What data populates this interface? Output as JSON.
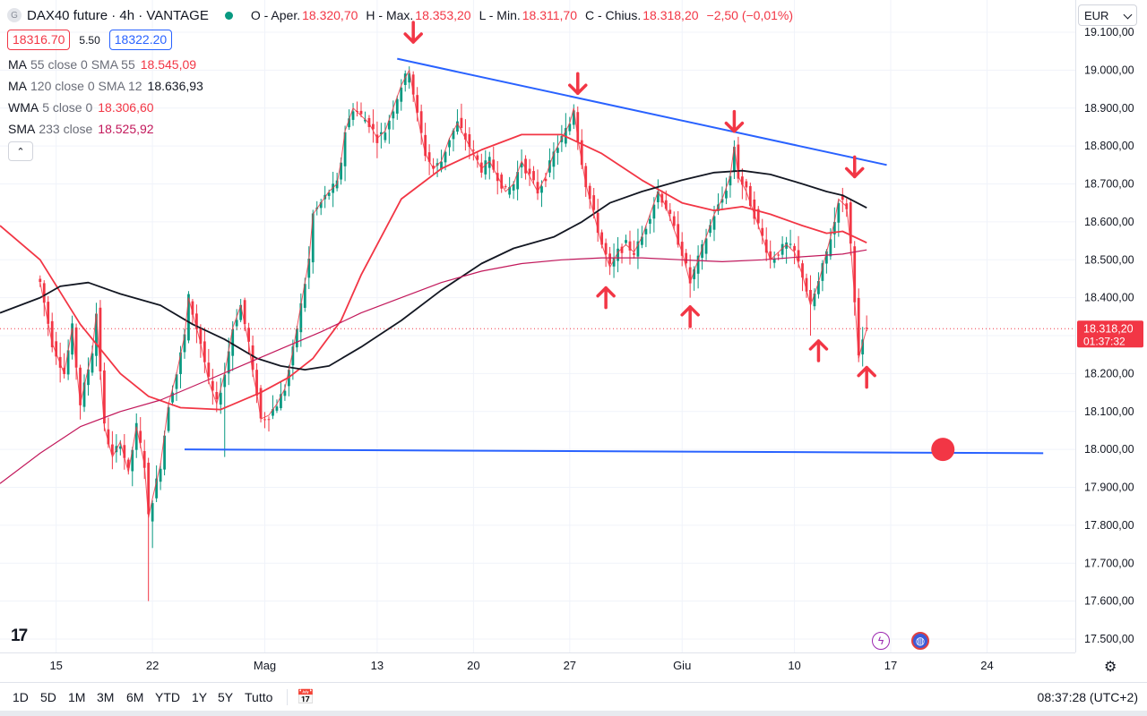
{
  "header": {
    "logo_letter": "G",
    "symbol": "DAX40 future · 4h · VANTAGE",
    "open_label": "O - Aper.",
    "open_value": "18.320,70",
    "high_label": "H - Max.",
    "high_value": "18.353,20",
    "low_label": "L - Min.",
    "low_value": "18.311,70",
    "close_label": "C - Chius.",
    "close_value": "18.318,20",
    "change": "−2,50 (−0,01%)",
    "bid": "18316.70",
    "spread": "5.50",
    "ask": "18322.20",
    "currency": "EUR",
    "collapse_glyph": "⌃"
  },
  "indicators": [
    {
      "name": "MA",
      "params": "55 close 0 SMA 55",
      "value": "18.545,09",
      "color": "#f23645"
    },
    {
      "name": "MA",
      "params": "120 close 0 SMA 12",
      "value": "18.636,93",
      "color": "#131722"
    },
    {
      "name": "WMA",
      "params": "5 close 0",
      "value": "18.306,60",
      "color": "#f23645"
    },
    {
      "name": "SMA",
      "params": "233 close",
      "value": "18.525,92",
      "color": "#c2185b"
    }
  ],
  "price_axis": {
    "labels": [
      "19.100,00",
      "19.000,00",
      "18.900,00",
      "18.800,00",
      "18.700,00",
      "18.600,00",
      "18.500,00",
      "18.400,00",
      "18.300,00",
      "18.200,00",
      "18.100,00",
      "18.000,00",
      "17.900,00",
      "17.800,00",
      "17.700,00",
      "17.600,00",
      "17.500,00"
    ],
    "current_price": "18.318,20",
    "countdown": "01:37:32"
  },
  "time_axis": {
    "labels": [
      "15",
      "22",
      "Mag",
      "13",
      "20",
      "27",
      "Giu",
      "10",
      "17",
      "24"
    ]
  },
  "toolbar": {
    "ranges": [
      "1D",
      "5D",
      "1M",
      "3M",
      "6M",
      "YTD",
      "1Y",
      "5Y",
      "Tutto"
    ],
    "time": "08:37:28 (UTC+2)"
  },
  "icons": {
    "tv_logo": "17",
    "bolt": "ϟ",
    "earth": "◍",
    "gear": "⚙",
    "calendar": "📅"
  },
  "chart_data": {
    "type": "candlestick",
    "title": "DAX40 future · 4h · VANTAGE",
    "ylim": [
      17460,
      19130
    ],
    "y_ticks": [
      19100,
      19000,
      18900,
      18800,
      18700,
      18600,
      18500,
      18400,
      18300,
      18200,
      18100,
      18000,
      17900,
      17800,
      17700,
      17600,
      17500
    ],
    "x_ticks": [
      {
        "label": "15",
        "x": 4
      },
      {
        "label": "22",
        "x": 28
      },
      {
        "label": "Mag",
        "x": 56
      },
      {
        "label": "13",
        "x": 84
      },
      {
        "label": "20",
        "x": 108
      },
      {
        "label": "27",
        "x": 132
      },
      {
        "label": "Giu",
        "x": 160
      },
      {
        "label": "10",
        "x": 188
      },
      {
        "label": "17",
        "x": 212
      },
      {
        "label": "24",
        "x": 236
      }
    ],
    "xlim": [
      -10,
      258
    ],
    "anchors": [
      [
        0,
        18440
      ],
      [
        3,
        18280
      ],
      [
        6,
        18200
      ],
      [
        8,
        18320
      ],
      [
        10,
        18120
      ],
      [
        13,
        18260
      ],
      [
        14,
        18360
      ],
      [
        16,
        18060
      ],
      [
        18,
        17980
      ],
      [
        20,
        18020
      ],
      [
        22,
        17940
      ],
      [
        24,
        18060
      ],
      [
        26,
        17960
      ],
      [
        27,
        17820
      ],
      [
        28,
        17870
      ],
      [
        30,
        17960
      ],
      [
        32,
        18120
      ],
      [
        34,
        18200
      ],
      [
        36,
        18300
      ],
      [
        37,
        18400
      ],
      [
        38,
        18360
      ],
      [
        40,
        18280
      ],
      [
        42,
        18180
      ],
      [
        44,
        18120
      ],
      [
        46,
        18200
      ],
      [
        48,
        18320
      ],
      [
        50,
        18380
      ],
      [
        52,
        18280
      ],
      [
        53,
        18200
      ],
      [
        54,
        18150
      ],
      [
        55,
        18080
      ],
      [
        57,
        18090
      ],
      [
        59,
        18120
      ],
      [
        61,
        18160
      ],
      [
        63,
        18260
      ],
      [
        65,
        18380
      ],
      [
        67,
        18500
      ],
      [
        68,
        18620
      ],
      [
        70,
        18650
      ],
      [
        72,
        18680
      ],
      [
        74,
        18700
      ],
      [
        75,
        18760
      ],
      [
        76,
        18840
      ],
      [
        78,
        18900
      ],
      [
        80,
        18880
      ],
      [
        82,
        18860
      ],
      [
        84,
        18820
      ],
      [
        86,
        18840
      ],
      [
        88,
        18900
      ],
      [
        90,
        18960
      ],
      [
        92,
        19000
      ],
      [
        93,
        18940
      ],
      [
        94,
        18880
      ],
      [
        96,
        18780
      ],
      [
        98,
        18740
      ],
      [
        100,
        18760
      ],
      [
        102,
        18820
      ],
      [
        104,
        18860
      ],
      [
        106,
        18820
      ],
      [
        108,
        18780
      ],
      [
        110,
        18740
      ],
      [
        112,
        18760
      ],
      [
        114,
        18720
      ],
      [
        116,
        18680
      ],
      [
        118,
        18700
      ],
      [
        120,
        18760
      ],
      [
        122,
        18720
      ],
      [
        124,
        18680
      ],
      [
        126,
        18720
      ],
      [
        128,
        18780
      ],
      [
        130,
        18820
      ],
      [
        132,
        18860
      ],
      [
        133,
        18900
      ],
      [
        134,
        18820
      ],
      [
        136,
        18700
      ],
      [
        138,
        18620
      ],
      [
        140,
        18540
      ],
      [
        142,
        18480
      ],
      [
        144,
        18520
      ],
      [
        146,
        18540
      ],
      [
        148,
        18520
      ],
      [
        150,
        18560
      ],
      [
        152,
        18620
      ],
      [
        154,
        18680
      ],
      [
        156,
        18640
      ],
      [
        158,
        18580
      ],
      [
        160,
        18520
      ],
      [
        162,
        18440
      ],
      [
        164,
        18500
      ],
      [
        166,
        18560
      ],
      [
        168,
        18620
      ],
      [
        170,
        18660
      ],
      [
        172,
        18720
      ],
      [
        173,
        18800
      ],
      [
        174,
        18720
      ],
      [
        176,
        18680
      ],
      [
        178,
        18620
      ],
      [
        180,
        18560
      ],
      [
        182,
        18500
      ],
      [
        184,
        18520
      ],
      [
        186,
        18540
      ],
      [
        188,
        18520
      ],
      [
        190,
        18460
      ],
      [
        192,
        18380
      ],
      [
        194,
        18440
      ],
      [
        196,
        18520
      ],
      [
        198,
        18600
      ],
      [
        199,
        18660
      ],
      [
        201,
        18640
      ],
      [
        202,
        18540
      ],
      [
        203,
        18400
      ],
      [
        204,
        18240
      ],
      [
        205,
        18280
      ],
      [
        206,
        18318
      ]
    ],
    "wick_extremes": [
      {
        "x": 27,
        "low": 17600
      },
      {
        "x": 28,
        "low": 17740
      },
      {
        "x": 46,
        "low": 17980
      },
      {
        "x": 92,
        "high": 19010
      },
      {
        "x": 133,
        "high": 18910
      },
      {
        "x": 173,
        "high": 18815
      },
      {
        "x": 142,
        "low": 18460
      },
      {
        "x": 162,
        "low": 18400
      },
      {
        "x": 192,
        "low": 18300
      },
      {
        "x": 204,
        "low": 18230
      }
    ],
    "series": [
      {
        "name": "MA 55 close 0 SMA 55",
        "color": "#f23645",
        "width": 1.8,
        "points": [
          [
            -10,
            18590
          ],
          [
            0,
            18500
          ],
          [
            10,
            18330
          ],
          [
            20,
            18200
          ],
          [
            27,
            18140
          ],
          [
            35,
            18110
          ],
          [
            45,
            18105
          ],
          [
            55,
            18150
          ],
          [
            62,
            18190
          ],
          [
            68,
            18240
          ],
          [
            75,
            18340
          ],
          [
            80,
            18460
          ],
          [
            90,
            18660
          ],
          [
            100,
            18740
          ],
          [
            110,
            18790
          ],
          [
            120,
            18830
          ],
          [
            130,
            18830
          ],
          [
            140,
            18780
          ],
          [
            150,
            18710
          ],
          [
            160,
            18650
          ],
          [
            168,
            18630
          ],
          [
            175,
            18640
          ],
          [
            182,
            18620
          ],
          [
            190,
            18590
          ],
          [
            196,
            18570
          ],
          [
            200,
            18575
          ],
          [
            206,
            18545
          ]
        ]
      },
      {
        "name": "MA 120 close 0 SMA 12",
        "color": "#131722",
        "width": 1.8,
        "points": [
          [
            -10,
            18360
          ],
          [
            0,
            18400
          ],
          [
            5,
            18430
          ],
          [
            12,
            18440
          ],
          [
            20,
            18410
          ],
          [
            30,
            18380
          ],
          [
            38,
            18330
          ],
          [
            46,
            18290
          ],
          [
            54,
            18240
          ],
          [
            60,
            18220
          ],
          [
            66,
            18210
          ],
          [
            72,
            18220
          ],
          [
            80,
            18270
          ],
          [
            90,
            18340
          ],
          [
            100,
            18420
          ],
          [
            110,
            18490
          ],
          [
            118,
            18530
          ],
          [
            128,
            18560
          ],
          [
            135,
            18600
          ],
          [
            142,
            18650
          ],
          [
            150,
            18680
          ],
          [
            160,
            18710
          ],
          [
            168,
            18730
          ],
          [
            175,
            18735
          ],
          [
            182,
            18725
          ],
          [
            190,
            18700
          ],
          [
            196,
            18680
          ],
          [
            200,
            18670
          ],
          [
            206,
            18637
          ]
        ]
      },
      {
        "name": "SMA 233 close",
        "color": "#c2185b",
        "width": 1.2,
        "points": [
          [
            -10,
            17910
          ],
          [
            0,
            17990
          ],
          [
            10,
            18060
          ],
          [
            20,
            18100
          ],
          [
            30,
            18130
          ],
          [
            40,
            18175
          ],
          [
            50,
            18220
          ],
          [
            60,
            18265
          ],
          [
            70,
            18310
          ],
          [
            80,
            18360
          ],
          [
            90,
            18400
          ],
          [
            100,
            18440
          ],
          [
            110,
            18470
          ],
          [
            120,
            18490
          ],
          [
            130,
            18500
          ],
          [
            140,
            18505
          ],
          [
            150,
            18505
          ],
          [
            160,
            18500
          ],
          [
            170,
            18495
          ],
          [
            180,
            18500
          ],
          [
            190,
            18508
          ],
          [
            200,
            18515
          ],
          [
            206,
            18526
          ]
        ]
      }
    ],
    "trendlines": [
      {
        "name": "resistance",
        "color": "#2962ff",
        "from": [
          89,
          19030
        ],
        "to": [
          211,
          18750
        ]
      },
      {
        "name": "support",
        "color": "#2962ff",
        "from": [
          36,
          18000
        ],
        "to": [
          250,
          17990
        ]
      }
    ],
    "markers": {
      "circle": {
        "x": 225,
        "y": 18000,
        "color": "#f23645"
      },
      "down_arrows": [
        {
          "x": 93,
          "y": 19100
        },
        {
          "x": 134,
          "y": 18965
        },
        {
          "x": 173,
          "y": 18865
        },
        {
          "x": 203,
          "y": 18745
        }
      ],
      "up_arrows": [
        {
          "x": 141,
          "y": 18400
        },
        {
          "x": 162,
          "y": 18350
        },
        {
          "x": 194,
          "y": 18260
        },
        {
          "x": 206,
          "y": 18190
        }
      ]
    },
    "current_price": 18318.2
  }
}
